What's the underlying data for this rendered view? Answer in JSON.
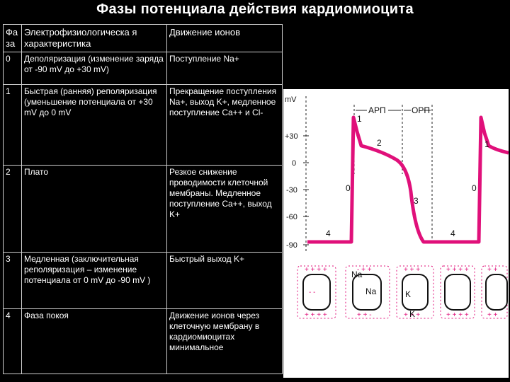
{
  "title": "Фазы потенциала действия кардиомиоцита",
  "table": {
    "headers": [
      "Фа за",
      "Электрофизиологическа я характеристика",
      "Движение ионов"
    ],
    "rows": [
      {
        "phase": "0",
        "characteristic": "Деполяризация (изменение заряда от -90 mV до +30 mV)",
        "ions": "Поступление Na+"
      },
      {
        "phase": "1",
        "characteristic": "Быстрая (ранняя) реполяризация (уменьшение потенциала от +30 mV до 0 mV",
        "ions": "Прекращение поступления Na+, выход K+, медленное поступление Ca++ и Cl-"
      },
      {
        "phase": "2",
        "characteristic": "Плато",
        "ions": "Резкое снижение проводимости клеточной мембраны. Медленное поступление Ca++, выход K+"
      },
      {
        "phase": "3",
        "characteristic": "Медленная (заключительная реполяризация – изменение потенциала от 0 mV до -90 mV )",
        "ions": "Быстрый выход K+"
      },
      {
        "phase": "4",
        "characteristic": "Фаза покоя",
        "ions": "Движение ионов через клеточную мембрану в кардиомиоцитах минимальное"
      }
    ]
  },
  "figure": {
    "y_unit": "mV",
    "y_ticks": [
      "+30",
      "0",
      "-30",
      "-60",
      "-90"
    ],
    "arp_label": "АРП",
    "orp_label": "ОРП",
    "curve_color": "#e0107a",
    "phase_labels": [
      "0",
      "1",
      "2",
      "3",
      "4",
      "4",
      "1",
      "0"
    ],
    "cell_ions": [
      "Na",
      "Na",
      "K",
      "K"
    ]
  }
}
